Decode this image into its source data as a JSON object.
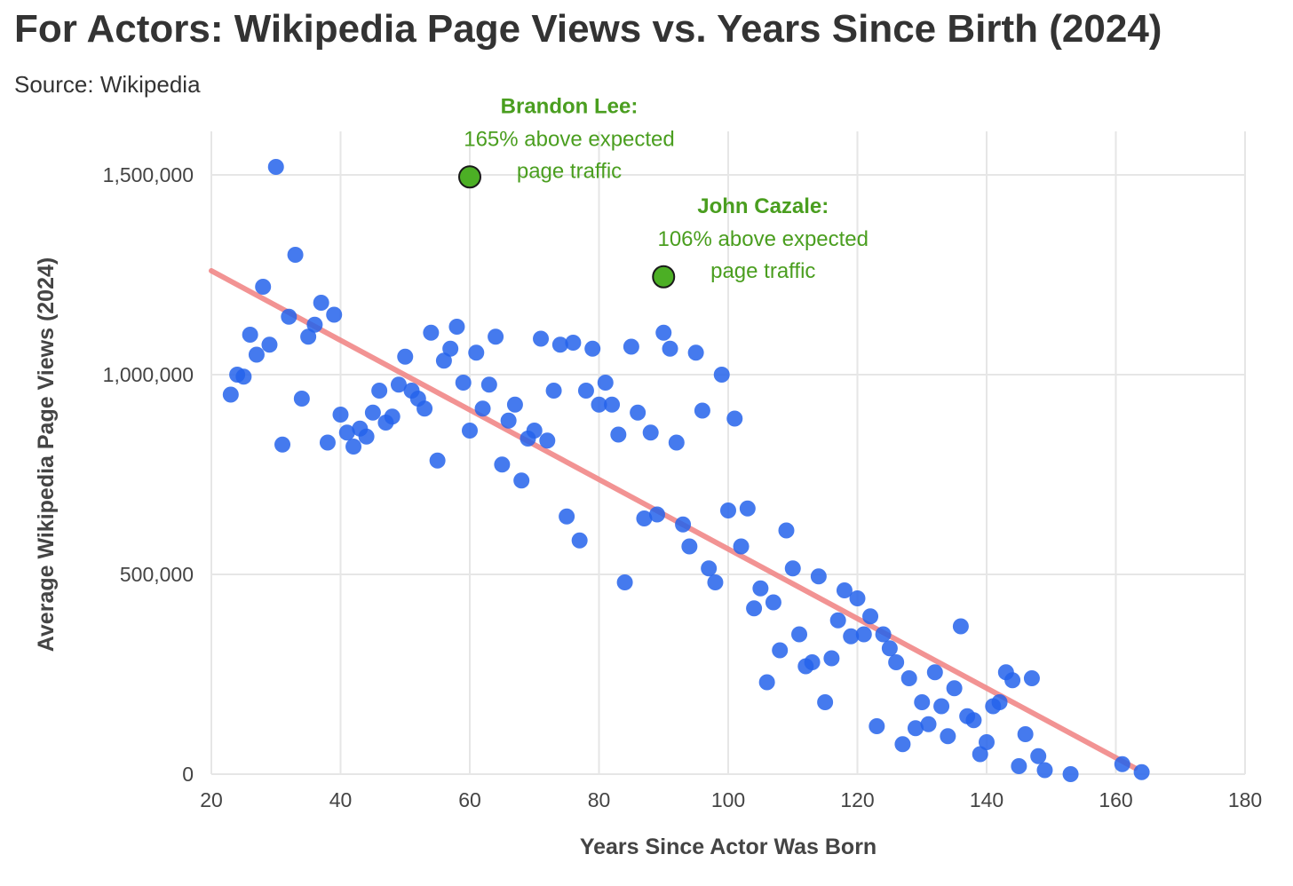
{
  "header": {
    "title": "For Actors: Wikipedia Page Views vs. Years Since Birth (2024)",
    "subtitle": "Source: Wikipedia"
  },
  "chart_data": {
    "type": "scatter",
    "title": "For Actors: Wikipedia Page Views vs. Years Since Birth (2024)",
    "subtitle": "Source: Wikipedia",
    "xlabel": "Years Since Actor Was Born",
    "ylabel": "Average Wikipedia Page Views (2024)",
    "xlim": [
      20,
      180
    ],
    "ylim": [
      0,
      1600000
    ],
    "x_ticks": [
      "20",
      "40",
      "60",
      "80",
      "100",
      "120",
      "140",
      "160",
      "180"
    ],
    "y_ticks": [
      "0",
      "500,000",
      "1,000,000",
      "1,500,000"
    ],
    "x_tick_values": [
      20,
      40,
      60,
      80,
      100,
      120,
      140,
      160,
      180
    ],
    "y_tick_values": [
      0,
      500000,
      1000000,
      1500000
    ],
    "grid": true,
    "colors": {
      "points": "#2563eb",
      "trend": "#f08080",
      "highlight": "#4caf25",
      "annotation": "#4a9e1f"
    },
    "series": [
      {
        "values": [
          [
            23,
            950000
          ],
          [
            24,
            1000000
          ],
          [
            25,
            995000
          ],
          [
            26,
            1100000
          ],
          [
            27,
            1050000
          ],
          [
            28,
            1220000
          ],
          [
            29,
            1075000
          ],
          [
            30,
            1520000
          ],
          [
            31,
            825000
          ],
          [
            32,
            1145000
          ],
          [
            33,
            1300000
          ],
          [
            34,
            940000
          ],
          [
            35,
            1095000
          ],
          [
            36,
            1125000
          ],
          [
            37,
            1180000
          ],
          [
            38,
            830000
          ],
          [
            39,
            1150000
          ],
          [
            40,
            900000
          ],
          [
            41,
            855000
          ],
          [
            42,
            820000
          ],
          [
            43,
            865000
          ],
          [
            44,
            845000
          ],
          [
            45,
            905000
          ],
          [
            46,
            960000
          ],
          [
            47,
            880000
          ],
          [
            48,
            895000
          ],
          [
            49,
            975000
          ],
          [
            50,
            1045000
          ],
          [
            51,
            960000
          ],
          [
            52,
            940000
          ],
          [
            53,
            915000
          ],
          [
            54,
            1105000
          ],
          [
            55,
            785000
          ],
          [
            56,
            1035000
          ],
          [
            57,
            1065000
          ],
          [
            58,
            1120000
          ],
          [
            59,
            980000
          ],
          [
            60,
            860000
          ],
          [
            61,
            1055000
          ],
          [
            62,
            915000
          ],
          [
            63,
            975000
          ],
          [
            64,
            1095000
          ],
          [
            65,
            775000
          ],
          [
            66,
            885000
          ],
          [
            67,
            925000
          ],
          [
            68,
            735000
          ],
          [
            69,
            840000
          ],
          [
            70,
            860000
          ],
          [
            71,
            1090000
          ],
          [
            72,
            835000
          ],
          [
            73,
            960000
          ],
          [
            74,
            1075000
          ],
          [
            75,
            645000
          ],
          [
            76,
            1080000
          ],
          [
            77,
            585000
          ],
          [
            78,
            960000
          ],
          [
            79,
            1065000
          ],
          [
            80,
            925000
          ],
          [
            81,
            980000
          ],
          [
            82,
            925000
          ],
          [
            83,
            850000
          ],
          [
            84,
            480000
          ],
          [
            85,
            1070000
          ],
          [
            86,
            905000
          ],
          [
            87,
            640000
          ],
          [
            88,
            855000
          ],
          [
            89,
            650000
          ],
          [
            90,
            1105000
          ],
          [
            91,
            1065000
          ],
          [
            92,
            830000
          ],
          [
            93,
            625000
          ],
          [
            94,
            570000
          ],
          [
            95,
            1055000
          ],
          [
            96,
            910000
          ],
          [
            97,
            515000
          ],
          [
            98,
            480000
          ],
          [
            99,
            1000000
          ],
          [
            100,
            660000
          ],
          [
            101,
            890000
          ],
          [
            102,
            570000
          ],
          [
            103,
            665000
          ],
          [
            104,
            415000
          ],
          [
            105,
            465000
          ],
          [
            106,
            230000
          ],
          [
            107,
            430000
          ],
          [
            108,
            310000
          ],
          [
            109,
            610000
          ],
          [
            110,
            515000
          ],
          [
            111,
            350000
          ],
          [
            112,
            270000
          ],
          [
            113,
            280000
          ],
          [
            114,
            495000
          ],
          [
            115,
            180000
          ],
          [
            116,
            290000
          ],
          [
            117,
            385000
          ],
          [
            118,
            460000
          ],
          [
            119,
            345000
          ],
          [
            120,
            440000
          ],
          [
            121,
            350000
          ],
          [
            122,
            395000
          ],
          [
            123,
            120000
          ],
          [
            124,
            350000
          ],
          [
            125,
            315000
          ],
          [
            126,
            280000
          ],
          [
            127,
            75000
          ],
          [
            128,
            240000
          ],
          [
            129,
            115000
          ],
          [
            130,
            180000
          ],
          [
            131,
            125000
          ],
          [
            132,
            255000
          ],
          [
            133,
            170000
          ],
          [
            134,
            95000
          ],
          [
            135,
            215000
          ],
          [
            136,
            370000
          ],
          [
            137,
            145000
          ],
          [
            138,
            135000
          ],
          [
            139,
            50000
          ],
          [
            140,
            80000
          ],
          [
            141,
            170000
          ],
          [
            142,
            180000
          ],
          [
            143,
            255000
          ],
          [
            144,
            235000
          ],
          [
            145,
            20000
          ],
          [
            146,
            100000
          ],
          [
            147,
            240000
          ],
          [
            148,
            45000
          ],
          [
            149,
            10000
          ],
          [
            153,
            0
          ],
          [
            161,
            25000
          ],
          [
            164,
            5000
          ]
        ]
      }
    ],
    "trend_line": {
      "x": [
        20,
        163
      ],
      "y": [
        1260000,
        15000
      ]
    },
    "highlights": [
      {
        "x": 60,
        "y": 1495000,
        "name": "Brandon Lee:",
        "line1": "165% above expected",
        "line2": "page traffic"
      },
      {
        "x": 90,
        "y": 1245000,
        "name": "John Cazale:",
        "line1": "106% above expected",
        "line2": "page traffic"
      }
    ]
  }
}
